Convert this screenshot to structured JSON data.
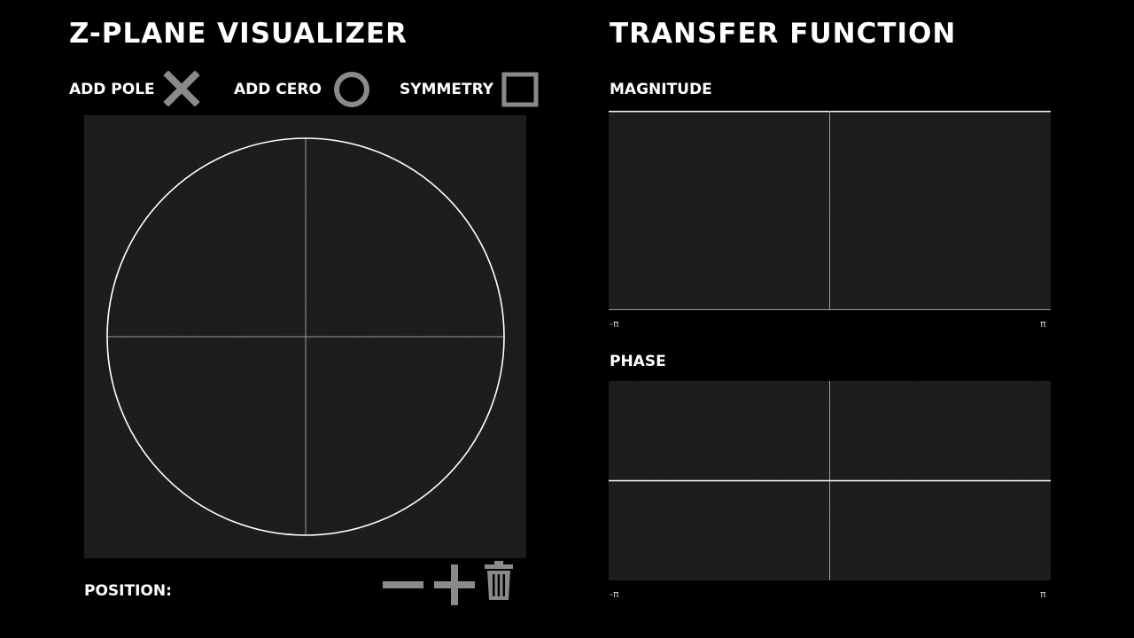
{
  "left": {
    "title": "Z-PLANE VISUALIZER",
    "toolbar": {
      "add_pole_label": "ADD POLE",
      "add_zero_label": "ADD CERO",
      "symmetry_label": "SYMMETRY"
    },
    "position_label": "POSITION:"
  },
  "right": {
    "title": "TRANSFER FUNCTION",
    "magnitude": {
      "label": "MAGNITUDE",
      "x_min_label": "-π",
      "x_max_label": "π"
    },
    "phase": {
      "label": "PHASE",
      "x_min_label": "-π",
      "x_max_label": "π"
    }
  },
  "icons": {
    "pole": "x-mark-icon",
    "zero": "circle-icon",
    "symmetry": "square-icon",
    "zoom_out": "minus-icon",
    "zoom_in": "plus-icon",
    "delete": "trash-icon"
  },
  "colors": {
    "background": "#000000",
    "panel": "#1b1b1b",
    "icon": "#8a8a8a",
    "line": "#ffffff"
  }
}
